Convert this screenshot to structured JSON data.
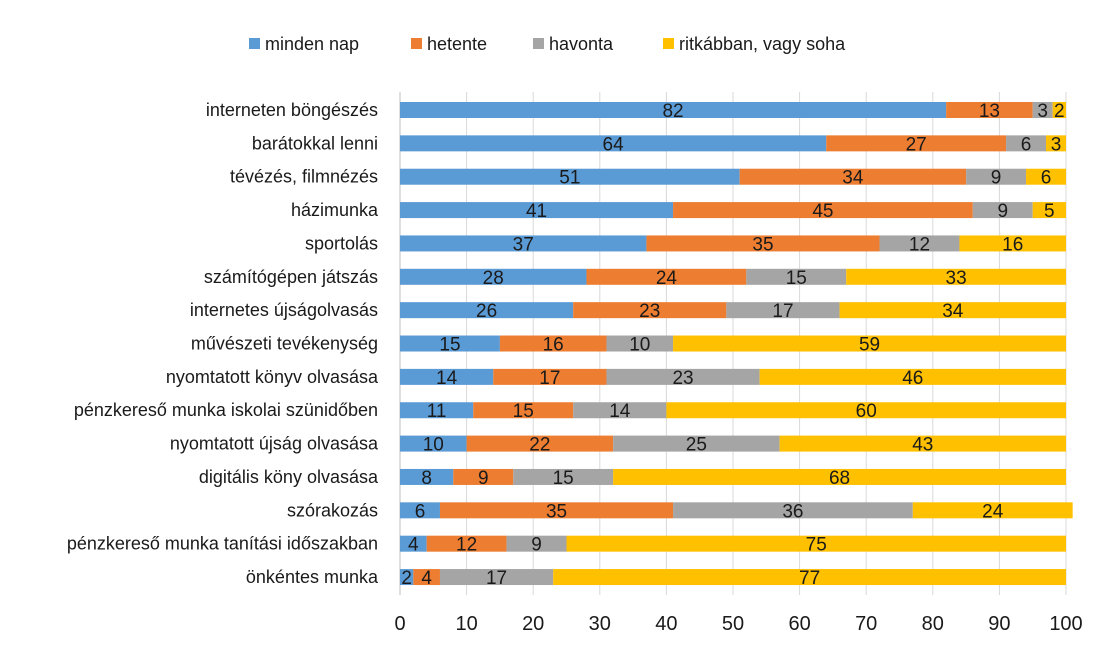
{
  "chart_data": {
    "type": "bar",
    "orientation": "horizontal",
    "stacked": true,
    "categories": [
      "interneten böngészés",
      "barátokkal lenni",
      "tévézés, filmnézés",
      "házimunka",
      "sportolás",
      "számítógépen játszás",
      "internetes újságolvasás",
      "művészeti tevékenység",
      "nyomtatott könyv olvasása",
      "pénzkereső munka iskolai szünidőben",
      "nyomtatott újság olvasása",
      "digitális köny olvasása",
      "szórakozás",
      "pénzkereső munka tanítási időszakban",
      "önkéntes munka"
    ],
    "series": [
      {
        "name": "minden nap",
        "color": "#5B9BD5",
        "values": [
          82,
          64,
          51,
          41,
          37,
          28,
          26,
          15,
          14,
          11,
          10,
          8,
          6,
          4,
          2
        ]
      },
      {
        "name": "hetente",
        "color": "#ED7D31",
        "values": [
          13,
          27,
          34,
          45,
          35,
          24,
          23,
          16,
          17,
          15,
          22,
          9,
          35,
          12,
          4
        ]
      },
      {
        "name": "havonta",
        "color": "#A5A5A5",
        "values": [
          3,
          6,
          9,
          9,
          12,
          15,
          17,
          10,
          23,
          14,
          25,
          15,
          36,
          9,
          17
        ]
      },
      {
        "name": "ritkábban, vagy soha",
        "color": "#FFC000",
        "values": [
          2,
          3,
          6,
          5,
          16,
          33,
          34,
          59,
          46,
          60,
          43,
          68,
          24,
          75,
          77
        ]
      }
    ],
    "xlim": [
      0,
      100
    ],
    "xticks": [
      "0",
      "10",
      "20",
      "30",
      "40",
      "50",
      "60",
      "70",
      "80",
      "90",
      "100"
    ],
    "grid": true,
    "legend": "top",
    "data_labels": true
  }
}
